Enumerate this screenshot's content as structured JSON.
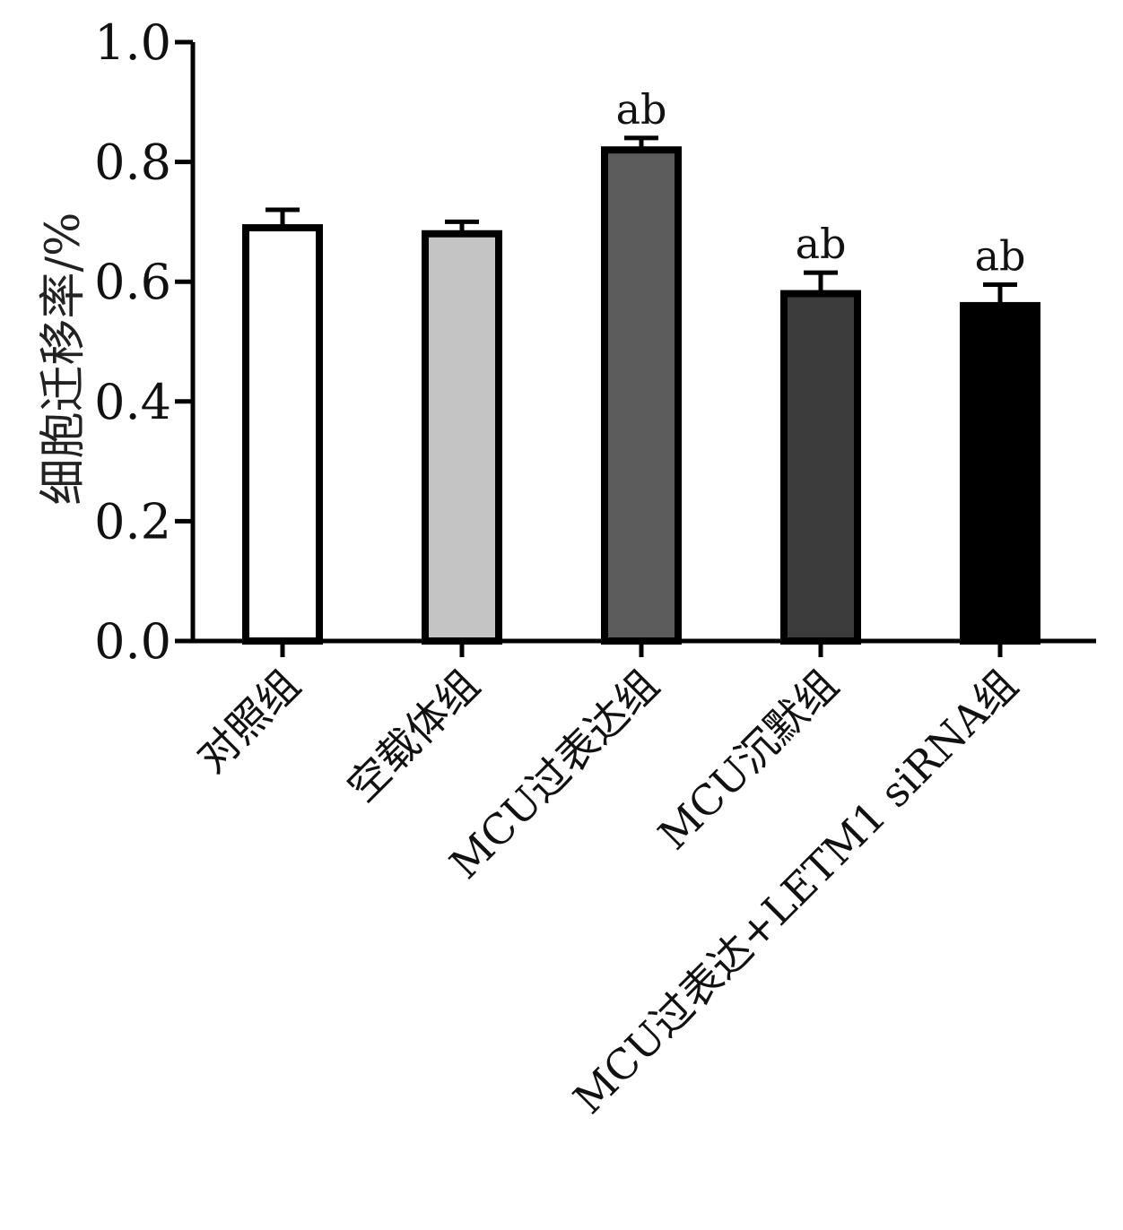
{
  "chart_data": {
    "type": "bar",
    "title": "",
    "xlabel": "",
    "ylabel": "细胞迁移率/%",
    "ylim": [
      0,
      1.0
    ],
    "yticks": [
      0.0,
      0.2,
      0.4,
      0.6,
      0.8,
      1.0
    ],
    "ytick_labels": [
      "0.0",
      "0.2",
      "0.4",
      "0.6",
      "0.8",
      "1.0"
    ],
    "grid": false,
    "categories": [
      "对照组",
      "空载体组",
      "MCU过表达组",
      "MCU沉默组",
      "MCU过表达+LETM1 siRNA组"
    ],
    "values": [
      0.69,
      0.68,
      0.82,
      0.58,
      0.56
    ],
    "errors": [
      0.03,
      0.02,
      0.02,
      0.035,
      0.035
    ],
    "annotations": [
      "",
      "",
      "ab",
      "ab",
      "ab"
    ],
    "colors": [
      "#ffffff",
      "#c4c4c4",
      "#5c5c5c",
      "#3c3c3c",
      "#000000"
    ]
  }
}
